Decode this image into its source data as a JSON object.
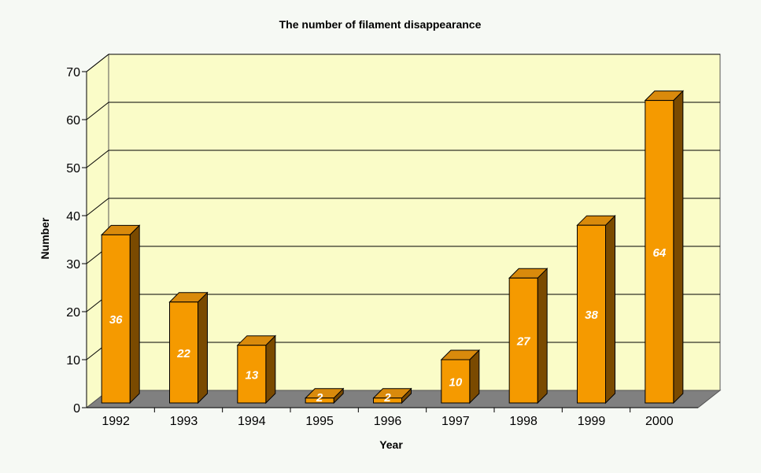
{
  "chart_data": {
    "type": "bar",
    "title": "The number of filament disappearance",
    "xlabel": "Year",
    "ylabel": "Number",
    "categories": [
      "1992",
      "1993",
      "1994",
      "1995",
      "1996",
      "1997",
      "1998",
      "1999",
      "2000"
    ],
    "values": [
      36,
      22,
      13,
      2,
      2,
      10,
      27,
      38,
      64
    ],
    "ylim": [
      0,
      70
    ],
    "yticks": [
      0,
      10,
      20,
      30,
      40,
      50,
      60,
      70
    ],
    "grid": true,
    "three_d": true,
    "data_labels": true,
    "colors": {
      "bar_front": "#f59a00",
      "bar_top": "#d98a0c",
      "bar_side": "#7a4a00",
      "plot_background": "#fafcc8",
      "floor": "#808080",
      "gridline": "#000000"
    }
  }
}
